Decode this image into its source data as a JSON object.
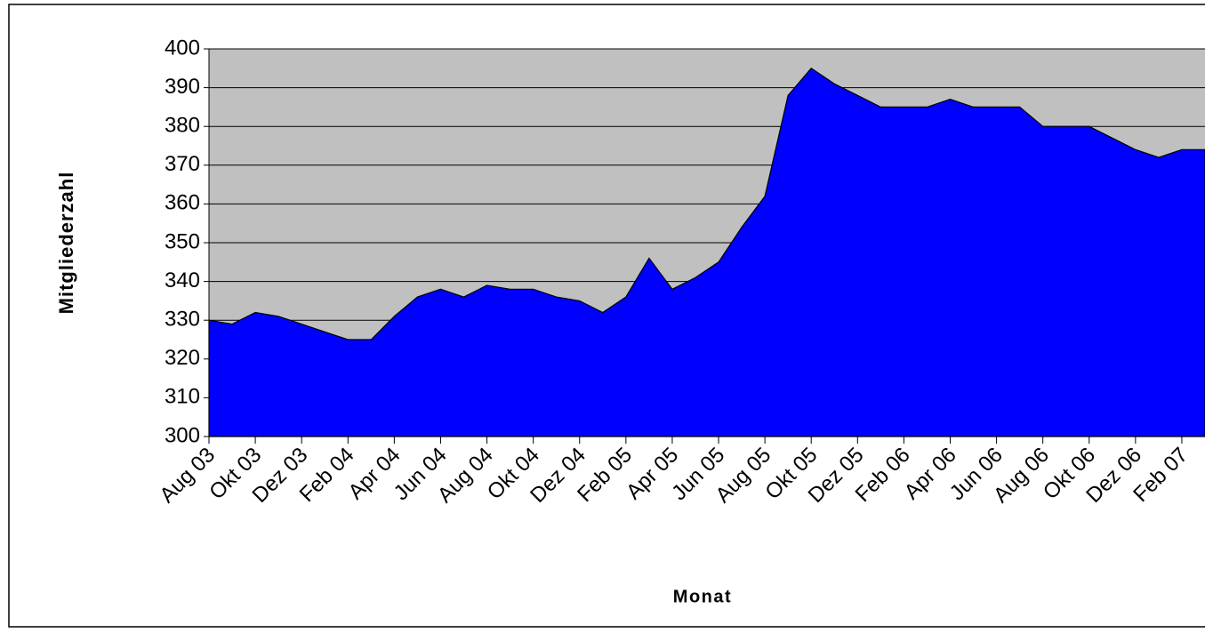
{
  "chart_data": {
    "type": "area",
    "x_label": "Monat",
    "y_label": "Mitgliederzahl",
    "categories": [
      "Aug 03",
      null,
      "Okt 03",
      null,
      "Dez 03",
      null,
      "Feb 04",
      null,
      "Apr 04",
      null,
      "Jun 04",
      null,
      "Aug 04",
      null,
      "Okt 04",
      null,
      "Dez 04",
      null,
      "Feb 05",
      null,
      "Apr 05",
      null,
      "Jun 05",
      null,
      "Aug 05",
      null,
      "Okt 05",
      null,
      "Dez 05",
      null,
      "Feb 06",
      null,
      "Apr 06",
      null,
      "Jun 06",
      null,
      "Aug 06",
      null,
      "Okt 06",
      null,
      "Dez 06",
      null,
      "Feb 07",
      null
    ],
    "series": [
      {
        "name": "Mitgliederzahl",
        "color": "#0000ff",
        "values": [
          330,
          329,
          332,
          331,
          329,
          327,
          325,
          325,
          331,
          336,
          338,
          336,
          339,
          338,
          338,
          336,
          335,
          332,
          336,
          346,
          338,
          341,
          345,
          354,
          362,
          388,
          395,
          391,
          388,
          385,
          385,
          385,
          387,
          385,
          385,
          385,
          380,
          380,
          380,
          377,
          374,
          372,
          374,
          374
        ]
      }
    ],
    "ylim": [
      300,
      400
    ],
    "yticks": [
      300,
      310,
      320,
      330,
      340,
      350,
      360,
      370,
      380,
      390,
      400
    ],
    "grid": true,
    "plot_background": "#c0c0c0"
  }
}
